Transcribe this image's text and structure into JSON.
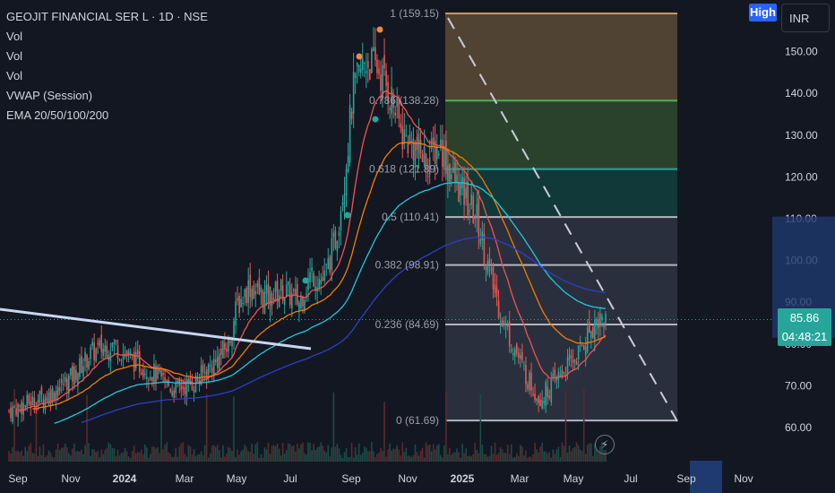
{
  "legend": {
    "symbol": "GEOJIT FINANCIAL SER L · 1D · NSE",
    "indicators": [
      "Vol",
      "Vol",
      "Vol",
      "VWAP (Session)",
      "EMA 20/50/100/200"
    ]
  },
  "badges": {
    "high": "High",
    "currency": "INR"
  },
  "last_price": {
    "price": "85.86",
    "countdown": "04:48:21"
  },
  "icons": {
    "replay": "lightning-icon"
  },
  "colors": {
    "background": "#131722",
    "up": "#26a69a",
    "down": "#ef5350",
    "ema20": "#ef5350",
    "ema50": "#f57c00",
    "ema100": "#26c6da",
    "ema200": "#2f3ec4",
    "trendline": "#c8d6f0",
    "fib_line": "#787b86"
  },
  "chart_data": {
    "type": "candlestick",
    "x_ticks": [
      "Sep",
      "Nov",
      "2024",
      "Mar",
      "May",
      "Jul",
      "Sep",
      "Nov",
      "2025",
      "Mar",
      "May",
      "Jul",
      "Sep",
      "Nov"
    ],
    "y_ticks": [
      "150.00",
      "140.00",
      "130.00",
      "120.00",
      "110.00",
      "100.00",
      "90.00",
      "80.00",
      "70.00",
      "60.00"
    ],
    "ylim": [
      57,
      163
    ],
    "fib_levels": [
      {
        "label": "1 (159.15)",
        "value": 159.15,
        "fill": "#5d4b36"
      },
      {
        "label": "0.786 (138.28)",
        "value": 138.28,
        "fill": "#2f4a2e"
      },
      {
        "label": "0.618 (121.89)",
        "value": 121.89,
        "fill": "#123f3d"
      },
      {
        "label": "0.5 (110.41)",
        "value": 110.41,
        "fill": "#2f3442"
      },
      {
        "label": "0.382 (98.91)",
        "value": 98.91,
        "fill": "#2f3442"
      },
      {
        "label": "0.236 (84.69)",
        "value": 84.69,
        "fill": "#2f3442"
      },
      {
        "label": "0 (61.69)",
        "value": 61.69,
        "fill": null
      }
    ],
    "price_path": [
      {
        "t": 0,
        "v": 64
      },
      {
        "t": 5,
        "v": 66
      },
      {
        "t": 10,
        "v": 68
      },
      {
        "t": 15,
        "v": 72
      },
      {
        "t": 20,
        "v": 78
      },
      {
        "t": 25,
        "v": 80
      },
      {
        "t": 30,
        "v": 76
      },
      {
        "t": 35,
        "v": 73
      },
      {
        "t": 40,
        "v": 69
      },
      {
        "t": 45,
        "v": 71
      },
      {
        "t": 50,
        "v": 76
      },
      {
        "t": 53,
        "v": 80
      },
      {
        "t": 55,
        "v": 89
      },
      {
        "t": 58,
        "v": 94
      },
      {
        "t": 62,
        "v": 91
      },
      {
        "t": 66,
        "v": 93
      },
      {
        "t": 70,
        "v": 90
      },
      {
        "t": 73,
        "v": 97
      },
      {
        "t": 76,
        "v": 95
      },
      {
        "t": 79,
        "v": 106
      },
      {
        "t": 81,
        "v": 120
      },
      {
        "t": 83,
        "v": 140
      },
      {
        "t": 86,
        "v": 148
      },
      {
        "t": 89,
        "v": 146
      },
      {
        "t": 92,
        "v": 140
      },
      {
        "t": 95,
        "v": 130
      },
      {
        "t": 98,
        "v": 127
      },
      {
        "t": 101,
        "v": 124
      },
      {
        "t": 104,
        "v": 128
      },
      {
        "t": 107,
        "v": 120
      },
      {
        "t": 110,
        "v": 115
      },
      {
        "t": 113,
        "v": 110
      },
      {
        "t": 116,
        "v": 97
      },
      {
        "t": 119,
        "v": 86
      },
      {
        "t": 122,
        "v": 79
      },
      {
        "t": 125,
        "v": 72
      },
      {
        "t": 128,
        "v": 67
      },
      {
        "t": 131,
        "v": 70
      },
      {
        "t": 134,
        "v": 74
      },
      {
        "t": 137,
        "v": 77
      },
      {
        "t": 140,
        "v": 83
      },
      {
        "t": 142,
        "v": 86
      },
      {
        "t": 144,
        "v": 85.86
      }
    ]
  }
}
